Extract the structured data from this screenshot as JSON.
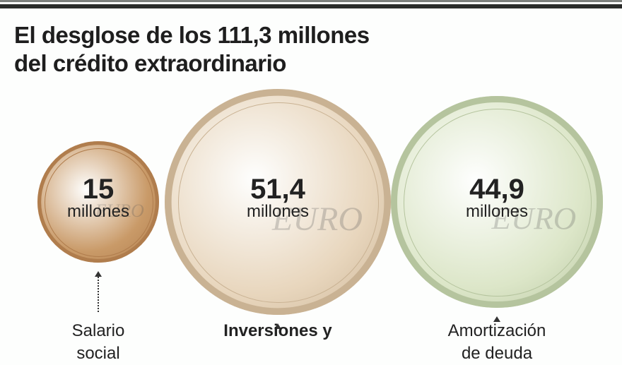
{
  "title_line1": "El desglose de los 111,3 millones",
  "title_line2": "del crédito extraordinario",
  "chart_data": {
    "type": "bubble",
    "title": "El desglose de los 111,3 millones del crédito extraordinario",
    "total": 111.3,
    "unit": "millones",
    "items": [
      {
        "value": 15,
        "value_label": "15",
        "unit": "millones",
        "label_line1": "Salario",
        "label_line2": "social",
        "color": "#c99a68"
      },
      {
        "value": 51.4,
        "value_label": "51,4",
        "unit": "millones",
        "label_line1": "Inversiones y",
        "label_line2": "",
        "color": "#e8d6bd"
      },
      {
        "value": 44.9,
        "value_label": "44,9",
        "unit": "millones",
        "label_line1": "Amortización",
        "label_line2": "de deuda",
        "color": "#dce6c8"
      }
    ]
  },
  "coin_marking": "EURO"
}
